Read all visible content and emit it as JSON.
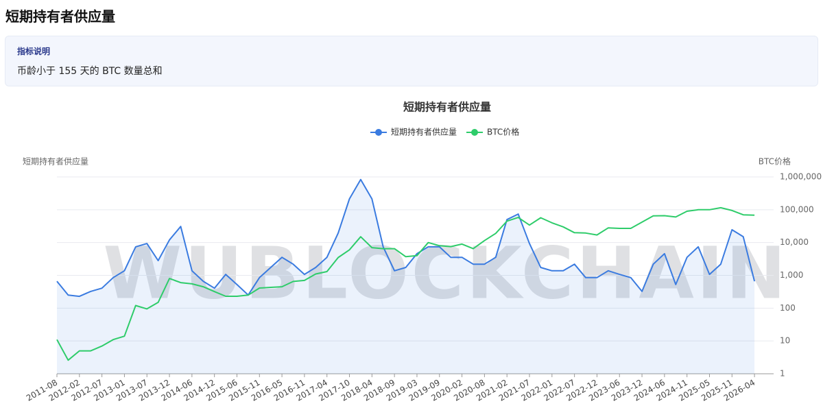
{
  "header": {
    "title": "短期持有者供应量"
  },
  "info": {
    "label": "指标说明",
    "text": "币龄小于 155 天的 BTC 数量总和"
  },
  "chart_data": {
    "type": "line",
    "title": "短期持有者供应量",
    "y_label": "短期持有者供应量",
    "y2_label": "BTC价格",
    "watermark": "WUBLOCKCHAIN",
    "legend": "top",
    "grid": true,
    "y2scale": "log",
    "categories": [
      "2011-08",
      null,
      "2012-02",
      null,
      "2012-07",
      null,
      "2013-01",
      null,
      "2013-07",
      null,
      "2013-12",
      null,
      "2014-06",
      null,
      "2014-12",
      null,
      "2015-06",
      null,
      "2015-11",
      null,
      "2016-05",
      null,
      "2016-11",
      null,
      "2017-04",
      null,
      "2017-10",
      null,
      "2018-04",
      null,
      "2018-09",
      null,
      "2019-03",
      null,
      "2019-09",
      null,
      "2020-02",
      null,
      "2020-08",
      null,
      "2021-02",
      null,
      "2021-07",
      null,
      "2022-01",
      null,
      "2022-07",
      null,
      "2022-12",
      null,
      "2023-06",
      null,
      "2023-12",
      null,
      "2024-06",
      null,
      "2024-11",
      null,
      "2025-05",
      null,
      "2025-11",
      null,
      "2026-04"
    ],
    "ylim": [
      0,
      6000000
    ],
    "y2lim": [
      1,
      1000000
    ],
    "y2ticks": [
      1,
      10,
      100,
      {
        "value": 1000,
        "label": "1,000"
      },
      {
        "value": 10000,
        "label": "10,000"
      },
      {
        "value": 100000,
        "label": "100,000"
      },
      {
        "value": 1000000,
        "label": "1,000,000"
      }
    ],
    "series": [
      {
        "name": "短期持有者供应量",
        "color": "#3a7be0",
        "area": true,
        "values": [
          2820000,
          2400000,
          2360000,
          2510000,
          2610000,
          2930000,
          3140000,
          3870000,
          3970000,
          3450000,
          4080000,
          4490000,
          3140000,
          2820000,
          2610000,
          3030000,
          2720000,
          2400000,
          2930000,
          3240000,
          3550000,
          3340000,
          3030000,
          3240000,
          3550000,
          4290000,
          5330000,
          5920000,
          5330000,
          3870000,
          3140000,
          3240000,
          3660000,
          3870000,
          3870000,
          3550000,
          3550000,
          3340000,
          3340000,
          3550000,
          4700000,
          4870000,
          3970000,
          3240000,
          3140000,
          3140000,
          3340000,
          2930000,
          2930000,
          3140000,
          3030000,
          2930000,
          2510000,
          3340000,
          3660000,
          2720000,
          3550000,
          3870000,
          3030000,
          3340000,
          4390000,
          4180000,
          2820000
        ]
      },
      {
        "name": "BTC价格",
        "color": "#2ecc6a",
        "axis": "y2",
        "values": [
          11,
          2.6,
          5,
          5,
          7,
          11,
          14,
          120,
          95,
          150,
          800,
          600,
          550,
          450,
          320,
          230,
          230,
          250,
          410,
          430,
          450,
          650,
          700,
          1100,
          1300,
          3500,
          6000,
          15000,
          7000,
          6500,
          6500,
          3700,
          4000,
          10000,
          8000,
          7500,
          9000,
          6500,
          11500,
          19000,
          45000,
          58000,
          34000,
          57000,
          40000,
          30000,
          20000,
          19500,
          17000,
          28000,
          27000,
          27000,
          42000,
          65000,
          66000,
          60000,
          90000,
          100000,
          100000,
          115000,
          95000,
          70000,
          68000
        ]
      }
    ]
  }
}
